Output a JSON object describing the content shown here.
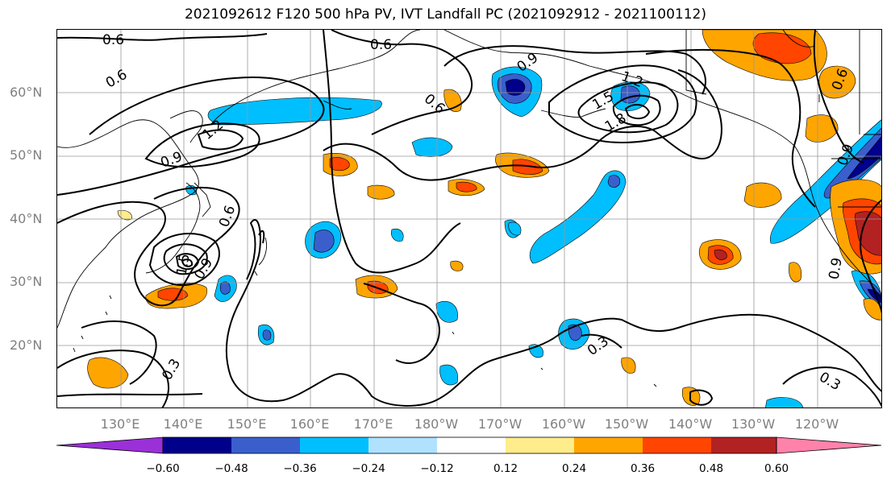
{
  "title": "2021092612 F120 500 hPa PV, IVT Landfall PC (2021092912 - 2021100112)",
  "lat_labels": [
    "60°N",
    "50°N",
    "40°N",
    "30°N",
    "20°N"
  ],
  "lon_labels": [
    "130°E",
    "140°E",
    "150°E",
    "160°E",
    "170°E",
    "180°W",
    "170°W",
    "160°W",
    "150°W",
    "140°W",
    "130°W",
    "120°W"
  ],
  "colorbar": {
    "ticks": [
      "−0.60",
      "−0.48",
      "−0.36",
      "−0.24",
      "−0.12",
      "0.12",
      "0.24",
      "0.36",
      "0.48",
      "0.60"
    ],
    "colors": [
      "#9b30d9",
      "#00008b",
      "#3a5fcd",
      "#00bfff",
      "#b0e2ff",
      "#ffffff",
      "#ffec8b",
      "#ffa500",
      "#ff4500",
      "#b22222",
      "#ff82ab"
    ]
  },
  "contour_labels": [
    "0.6",
    "0.6",
    "0.6",
    "0.6",
    "0.9",
    "0.9",
    "0.9",
    "1.2",
    "1.2",
    "1.5",
    "1.8",
    "0.6",
    "1.5",
    "0.9",
    "0.3",
    "0.3",
    "0.3",
    "0.9",
    "0.6"
  ],
  "fill_colors": {
    "neg_light": "#00bfff",
    "neg_mid": "#3a5fcd",
    "neg_dark": "#00008b",
    "pos_light": "#ffec8b",
    "pos_mid": "#ffa500",
    "pos_strong": "#ff4500",
    "pos_dark": "#b22222"
  }
}
